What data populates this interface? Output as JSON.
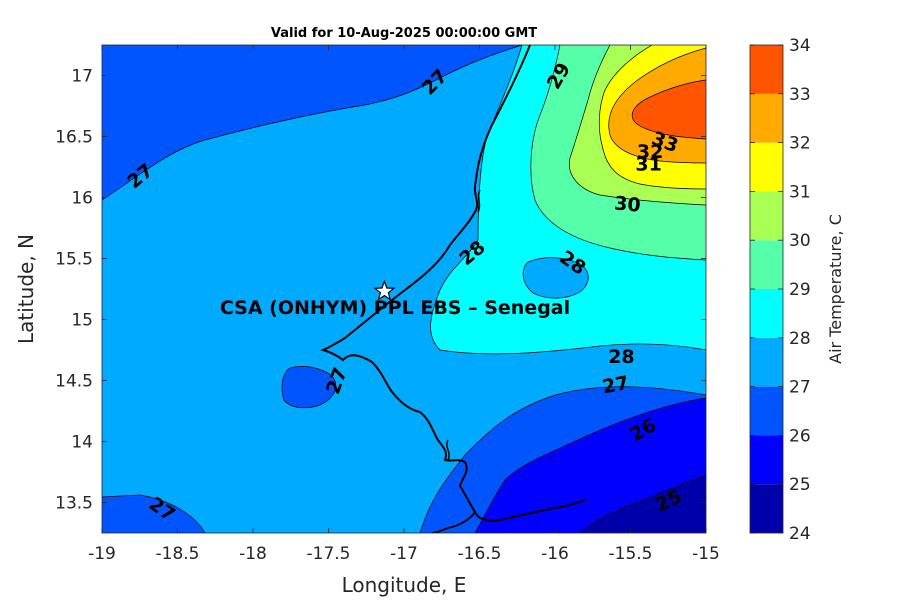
{
  "chart_data": {
    "type": "heatmap",
    "subtype": "filled-contour-map",
    "title": "Valid for 10-Aug-2025 00:00:00 GMT",
    "xlabel": "Longitude, E",
    "ylabel": "Latitude, N",
    "xlim": [
      -19,
      -15
    ],
    "ylim": [
      13.25,
      17.25
    ],
    "xticks": [
      "-19",
      "-18.5",
      "-18",
      "-17.5",
      "-17",
      "-16.5",
      "-16",
      "-15.5",
      "-15"
    ],
    "yticks": [
      "13.5",
      "14",
      "14.5",
      "15",
      "15.5",
      "16",
      "16.5",
      "17"
    ],
    "colorbar": {
      "label": "Air Temperature, C",
      "levels": [
        24,
        25,
        26,
        27,
        28,
        29,
        30,
        31,
        32,
        33,
        34
      ],
      "tick_labels": [
        "24",
        "25",
        "26",
        "27",
        "28",
        "29",
        "30",
        "31",
        "32",
        "33",
        "34"
      ],
      "colors": [
        "#0000aa",
        "#0000ff",
        "#0055ff",
        "#00aaff",
        "#00ffff",
        "#55ffaa",
        "#aaff55",
        "#ffff00",
        "#ffaa00",
        "#ff5500",
        "#ff0000"
      ]
    },
    "contour_labels": [
      {
        "text": "27",
        "lon": -16.8,
        "lat": 16.95,
        "angle": -45
      },
      {
        "text": "27",
        "lon": -18.75,
        "lat": 16.18,
        "angle": -40
      },
      {
        "text": "29",
        "lon": -15.98,
        "lat": 17.0,
        "angle": -60
      },
      {
        "text": "33",
        "lon": -15.27,
        "lat": 16.46,
        "angle": 20
      },
      {
        "text": "32",
        "lon": -15.37,
        "lat": 16.38,
        "angle": 0
      },
      {
        "text": "31",
        "lon": -15.38,
        "lat": 16.28,
        "angle": 0
      },
      {
        "text": "30",
        "lon": -15.52,
        "lat": 15.95,
        "angle": 5
      },
      {
        "text": "28",
        "lon": -16.55,
        "lat": 15.55,
        "angle": -40
      },
      {
        "text": "28",
        "lon": -15.88,
        "lat": 15.47,
        "angle": 35
      },
      {
        "text": "28",
        "lon": -15.56,
        "lat": 14.7,
        "angle": 0
      },
      {
        "text": "27",
        "lon": -15.6,
        "lat": 14.47,
        "angle": -10
      },
      {
        "text": "27",
        "lon": -17.45,
        "lat": 14.5,
        "angle": -70
      },
      {
        "text": "26",
        "lon": -15.42,
        "lat": 14.1,
        "angle": -30
      },
      {
        "text": "25",
        "lon": -15.25,
        "lat": 13.52,
        "angle": -25
      },
      {
        "text": "27",
        "lon": -18.6,
        "lat": 13.45,
        "angle": 35
      }
    ],
    "marker": {
      "symbol": "star",
      "lon": -17.13,
      "lat": 15.23
    },
    "annotation": "CSA (ONHYM) PPL EBS  – Senegal"
  }
}
